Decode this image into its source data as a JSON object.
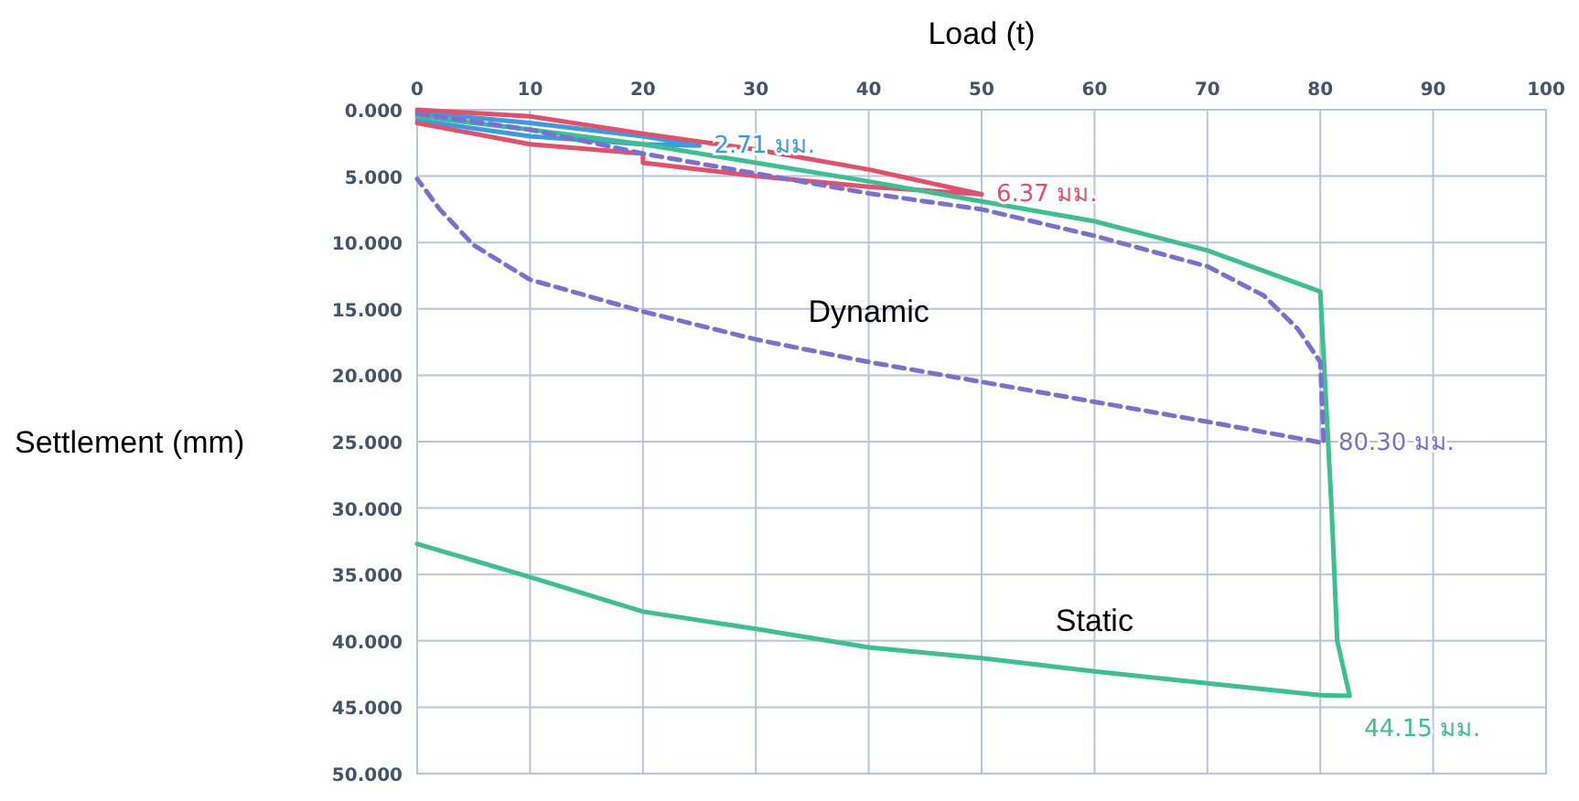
{
  "chart_data": {
    "type": "line",
    "xlabel": "Load (t)",
    "ylabel": "Settlement (mm)",
    "xlim": [
      0,
      100
    ],
    "xticks": [
      0,
      10,
      20,
      30,
      40,
      50,
      60,
      70,
      80,
      90,
      100
    ],
    "ylim": [
      50,
      0
    ],
    "yticks": [
      {
        "value": 0,
        "label": "0.000"
      },
      {
        "value": 5,
        "label": "5.000"
      },
      {
        "value": 10,
        "label": "10.000"
      },
      {
        "value": 15,
        "label": "15.000"
      },
      {
        "value": 20,
        "label": "20.000"
      },
      {
        "value": 25,
        "label": "25.000"
      },
      {
        "value": 30,
        "label": "30.000"
      },
      {
        "value": 35,
        "label": "35.000"
      },
      {
        "value": 40,
        "label": "40.000"
      },
      {
        "value": 45,
        "label": "45.000"
      },
      {
        "value": 50,
        "label": "50.000"
      }
    ],
    "grid": true,
    "marker": "none",
    "series": [
      {
        "color": "#3b9be0",
        "line_style": "solid",
        "x": [
          0,
          10,
          20,
          25,
          20,
          10,
          0
        ],
        "values": [
          0.2,
          1.0,
          2.0,
          2.71,
          2.6,
          2.0,
          0.8
        ]
      },
      {
        "color": "#e2506c",
        "line_style": "solid",
        "x": [
          0,
          10,
          20,
          30,
          40,
          50,
          40,
          30,
          20,
          20,
          10,
          0
        ],
        "values": [
          0,
          0.5,
          1.8,
          3.0,
          4.5,
          6.37,
          5.8,
          5.0,
          4.0,
          3.3,
          2.6,
          1.0
        ]
      },
      {
        "name": "Static",
        "color": "#3dbf8f",
        "line_style": "solid",
        "x": [
          0,
          10,
          20,
          30,
          40,
          50,
          60,
          70,
          80,
          81,
          81.5,
          82.6,
          80,
          70,
          60,
          50,
          40,
          30,
          20,
          10,
          0
        ],
        "values": [
          0.5,
          1.5,
          2.6,
          4.0,
          5.4,
          6.9,
          8.4,
          10.6,
          13.7,
          30,
          40,
          44.15,
          44.1,
          43.2,
          42.3,
          41.3,
          40.5,
          39.1,
          37.8,
          35.2,
          32.7
        ]
      },
      {
        "name": "Dynamic",
        "color": "#7b6fd0",
        "line_style": "dashed",
        "x": [
          0,
          10,
          20,
          30,
          40,
          50,
          60,
          70,
          75,
          78,
          80,
          80.3,
          70,
          60,
          50,
          40,
          30,
          20,
          10,
          5,
          2,
          0
        ],
        "values": [
          0.3,
          1.5,
          3.3,
          4.8,
          6.3,
          7.5,
          9.5,
          11.8,
          14,
          16.5,
          19,
          25.1,
          23.5,
          22,
          20.5,
          19,
          17.3,
          15.2,
          12.8,
          10.2,
          7.5,
          5.2
        ]
      }
    ],
    "annotations": [
      {
        "text": "2.71 มม.",
        "x": 25,
        "y": 2.71
      },
      {
        "text": "6.37 มม.",
        "x": 50,
        "y": 6.37
      },
      {
        "text": "80.30 มม.",
        "x": 80.3,
        "y": 25.1
      },
      {
        "text": "44.15 มม.",
        "x": 82.6,
        "y": 44.15
      }
    ]
  }
}
